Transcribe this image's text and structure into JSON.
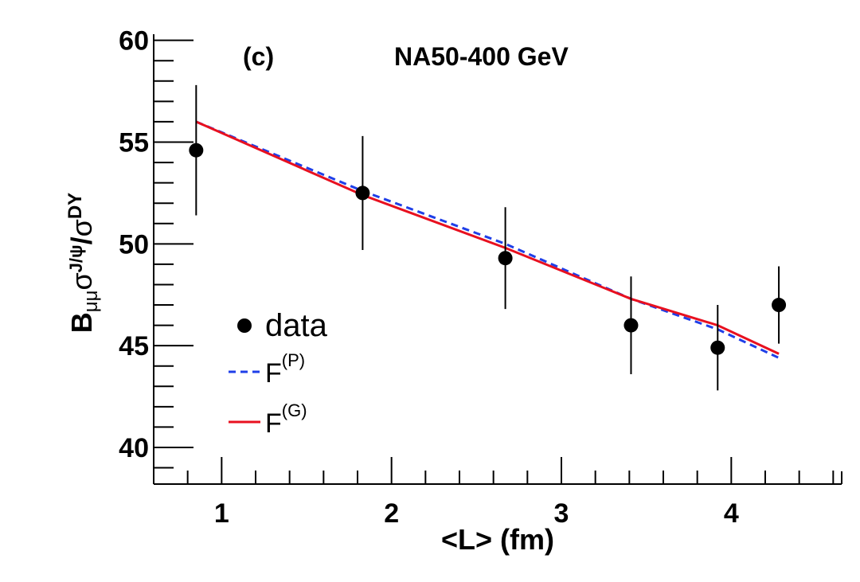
{
  "chart_data": {
    "type": "scatter",
    "panel_label": "(c)",
    "title": "NA50-400 GeV",
    "xlabel": "<L> (fm)",
    "ylabel": {
      "base": "B",
      "base_sub": "μμ",
      "sigma1": "σ",
      "sigma1_sup": "J/ψ",
      "slash": "/",
      "sigma2": "σ",
      "sigma2_sup": "DY"
    },
    "xlim": [
      0.6,
      4.65
    ],
    "ylim": [
      38.2,
      60.3
    ],
    "x_ticks": [
      1,
      2,
      3,
      4
    ],
    "x_tick_labels": [
      "1",
      "2",
      "3",
      "4"
    ],
    "y_ticks": [
      40,
      45,
      50,
      55,
      60
    ],
    "y_tick_labels": [
      "40",
      "45",
      "50",
      "55",
      "60"
    ],
    "x_minor_step": 0.2,
    "y_minor_step": 1,
    "series": [
      {
        "name": "data",
        "kind": "points",
        "color": "#000000",
        "x": [
          0.85,
          1.83,
          2.67,
          3.41,
          3.92,
          4.28
        ],
        "y": [
          54.6,
          52.5,
          49.3,
          46.0,
          44.9,
          47.0
        ],
        "err_low": [
          3.2,
          2.8,
          2.5,
          2.4,
          2.1,
          1.9
        ],
        "err_high": [
          3.2,
          2.8,
          2.5,
          2.4,
          2.1,
          1.9
        ]
      },
      {
        "name": "F",
        "name_sup": "(P)",
        "kind": "line",
        "style": "dashed",
        "color": "#1f3fe8",
        "x": [
          0.85,
          1.83,
          2.67,
          3.41,
          3.92,
          4.28
        ],
        "y": [
          56.0,
          52.6,
          50.0,
          47.3,
          45.8,
          44.4
        ]
      },
      {
        "name": "F",
        "name_sup": "(G)",
        "kind": "line",
        "style": "solid",
        "color": "#e8101f",
        "x": [
          0.85,
          1.83,
          2.67,
          3.41,
          3.92,
          4.28
        ],
        "y": [
          56.0,
          52.4,
          49.8,
          47.3,
          46.0,
          44.6
        ]
      }
    ],
    "legend": {
      "position": "bottom-left",
      "entries": [
        {
          "label": "data",
          "kind": "marker"
        },
        {
          "label": "F",
          "sup": "(P)",
          "kind": "dashed-line"
        },
        {
          "label": "F",
          "sup": "(G)",
          "kind": "solid-line"
        }
      ]
    }
  }
}
